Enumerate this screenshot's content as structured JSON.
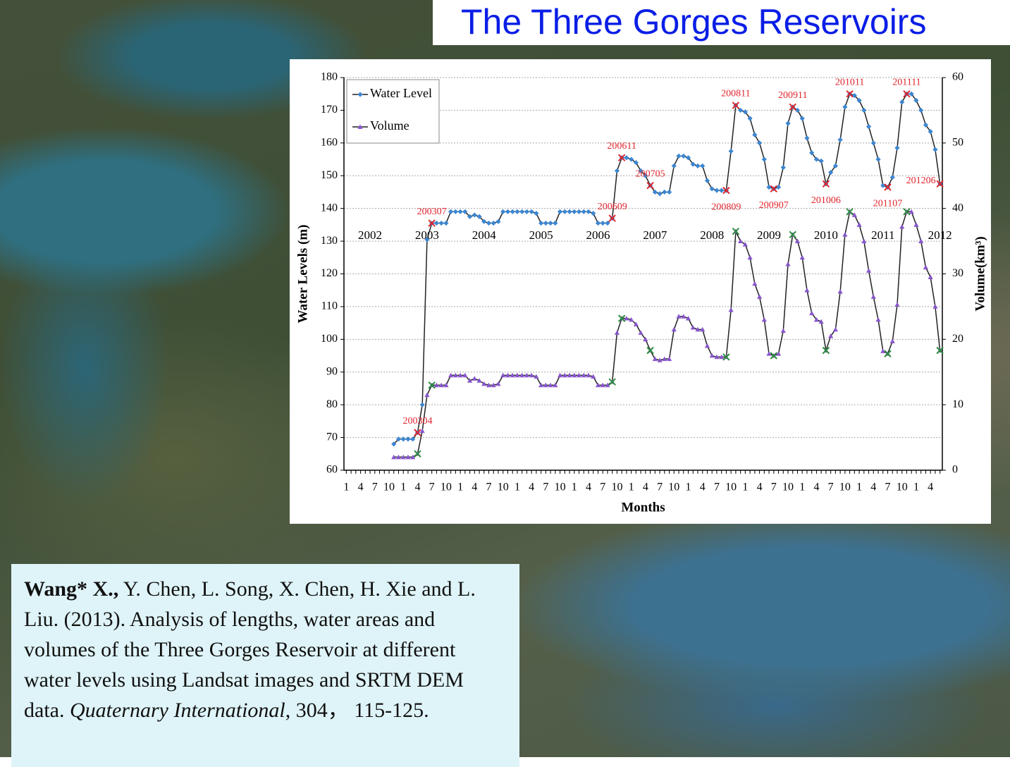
{
  "title": "The Three Gorges Reservoirs",
  "citation": {
    "author": "Wang* X.,",
    "text": " Y. Chen, L. Song, X. Chen, H. Xie and L. Liu. (2013). Analysis of lengths, water areas and volumes of the Three Gorges Reservoir at different water levels using Landsat images and SRTM DEM data. ",
    "journal": "Quaternary International",
    "pages": ", 304， 115-125."
  },
  "chart_data": {
    "type": "line",
    "x_label": "Months",
    "y_label": "Water Levels (m)",
    "y2_label": "Volume(km³)",
    "categories": [
      "1",
      null,
      null,
      "4",
      null,
      null,
      "7",
      null,
      null,
      "10",
      null,
      null,
      "1",
      null,
      null,
      "4",
      null,
      null,
      "7",
      null,
      null,
      "10",
      null,
      null,
      "1",
      null,
      null,
      "4",
      null,
      null,
      "7",
      null,
      null,
      "10",
      null,
      null,
      "1",
      null,
      null,
      "4",
      null,
      null,
      "7",
      null,
      null,
      "10",
      null,
      null,
      "1",
      null,
      null,
      "4",
      null,
      null,
      "7",
      null,
      null,
      "10",
      null,
      null,
      "1",
      null,
      null,
      "4",
      null,
      null,
      "7",
      null,
      null,
      "10",
      null,
      null,
      "1",
      null,
      null,
      "4",
      null,
      null,
      "7",
      null,
      null,
      "10",
      null,
      null,
      "1",
      null,
      null,
      "4",
      null,
      null,
      "7",
      null,
      null,
      "10",
      null,
      null,
      "1",
      null,
      null,
      "4",
      null,
      null,
      "7",
      null,
      null,
      "10",
      null,
      null,
      "1",
      null,
      null,
      "4",
      null,
      null,
      "7",
      null,
      null,
      "10",
      null,
      null,
      "1",
      null,
      null,
      "4",
      null,
      null
    ],
    "year_labels": [
      "2002",
      "2003",
      "2004",
      "2005",
      "2006",
      "2007",
      "2008",
      "2009",
      "2010",
      "2011",
      "2012"
    ],
    "series": [
      {
        "name": "Water Level",
        "color": "#3d86d0",
        "marker": "diamond",
        "values": [
          null,
          null,
          null,
          null,
          null,
          null,
          null,
          null,
          null,
          null,
          68,
          69.5,
          69.5,
          69.5,
          69.5,
          71.5,
          80,
          130.5,
          135.5,
          135.5,
          135.5,
          135.5,
          139,
          139,
          139,
          139,
          137.5,
          138,
          137.5,
          136,
          135.5,
          135.5,
          136,
          139,
          139,
          139,
          139,
          139,
          139,
          139,
          138.5,
          135.5,
          135.5,
          135.5,
          135.5,
          139,
          139,
          139,
          139,
          139,
          139,
          139,
          138.5,
          135.5,
          135.5,
          135.5,
          137,
          151.5,
          155.5,
          155.5,
          155,
          154,
          151.5,
          150,
          147,
          145,
          144.5,
          145,
          145,
          153,
          156,
          156,
          155.5,
          153.5,
          153,
          153,
          148.5,
          146,
          145.5,
          145.5,
          145.5,
          157.5,
          171.5,
          170,
          169.5,
          167.5,
          162.5,
          160,
          155,
          146.5,
          146,
          146.5,
          152.5,
          166,
          171,
          170,
          167.5,
          161.5,
          157,
          155,
          154.5,
          147.5,
          151,
          153,
          161,
          171,
          175,
          174.5,
          173,
          170,
          165,
          160,
          155,
          147,
          146.5,
          149.5,
          158.5,
          172.5,
          175,
          175,
          173,
          170,
          165.5,
          163.5,
          158,
          147.5
        ]
      },
      {
        "name": "Volume",
        "color": "#8856cc",
        "marker": "triangle",
        "axis": "y2",
        "values": [
          null,
          null,
          null,
          null,
          null,
          null,
          null,
          null,
          null,
          null,
          2,
          2,
          2,
          2,
          2,
          2.5,
          6,
          11.5,
          13,
          13,
          13,
          13,
          14.5,
          14.5,
          14.5,
          14.5,
          13.7,
          14,
          13.7,
          13.2,
          13,
          13,
          13.2,
          14.5,
          14.5,
          14.5,
          14.5,
          14.5,
          14.5,
          14.5,
          14.3,
          13,
          13,
          13,
          13,
          14.5,
          14.5,
          14.5,
          14.5,
          14.5,
          14.5,
          14.5,
          14.3,
          13,
          13,
          13,
          13.5,
          21,
          23.2,
          23.2,
          23,
          22.3,
          21,
          20,
          18.3,
          17,
          16.8,
          17,
          17,
          21.5,
          23.5,
          23.5,
          23.2,
          21.8,
          21.5,
          21.5,
          19,
          17.5,
          17.3,
          17.3,
          17.3,
          24.5,
          36.5,
          35,
          34.5,
          32.5,
          28.5,
          26.5,
          23,
          17.8,
          17.5,
          17.8,
          21.3,
          31.5,
          36,
          35,
          32.5,
          27.5,
          24,
          23,
          22.7,
          18.3,
          20.5,
          21.5,
          27.3,
          36,
          39.5,
          39,
          37.5,
          35,
          30.5,
          26.5,
          23,
          18.2,
          17.8,
          19.7,
          25.3,
          37.2,
          39.5,
          39.5,
          37.5,
          35,
          31,
          29.5,
          25,
          18.3
        ]
      }
    ],
    "line_color": "#222222",
    "highlights": {
      "labels": [
        "200304",
        "200307",
        "200609",
        "200611",
        "200705",
        "200809",
        "200811",
        "200907",
        "200911",
        "201006",
        "201011",
        "201107",
        "201111",
        "201206"
      ],
      "color": "#e0242c",
      "volume_color": "#2a8c3c"
    },
    "ylim": [
      60,
      180
    ],
    "yticks": [
      60,
      70,
      80,
      90,
      100,
      110,
      120,
      130,
      140,
      150,
      160,
      170,
      180
    ],
    "y2lim": [
      0,
      60
    ],
    "y2ticks": [
      0,
      10,
      20,
      30,
      40,
      50,
      60
    ],
    "grid": true,
    "legend": "top-left"
  }
}
